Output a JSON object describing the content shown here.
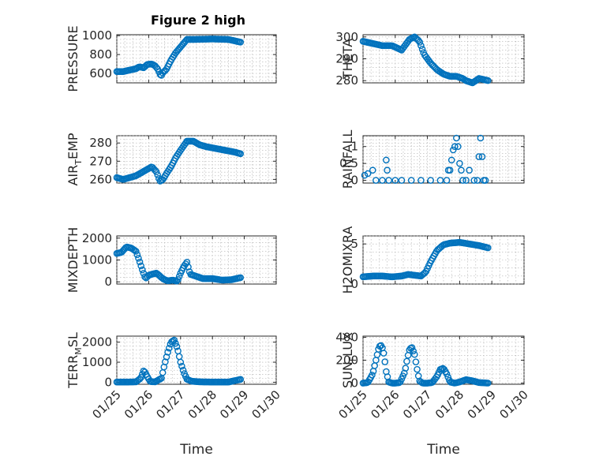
{
  "figure_title": "Figure 2 high",
  "marker_color": "#0072BD",
  "chart_data": [
    {
      "type": "scatter",
      "ylabel": "PRESSURE",
      "ylabel_sub": "",
      "ylabel_suffix": "",
      "xlim": [
        0,
        5
      ],
      "ylim": [
        500,
        1010
      ],
      "yticks": [
        600,
        800,
        1000
      ],
      "xticks": [
        0,
        1,
        2,
        3,
        4,
        5
      ],
      "x": [
        0.0,
        0.2,
        0.4,
        0.6,
        0.7,
        0.85,
        0.95,
        1.1,
        1.2,
        1.3,
        1.35,
        1.4,
        1.45,
        1.55,
        1.7,
        1.85,
        2.0,
        2.2,
        2.4,
        3.0,
        3.5,
        3.9
      ],
      "y": [
        620,
        620,
        635,
        650,
        670,
        660,
        695,
        700,
        680,
        640,
        590,
        580,
        610,
        640,
        740,
        820,
        880,
        960,
        960,
        965,
        960,
        930
      ],
      "dense": true
    },
    {
      "type": "scatter",
      "ylabel": "THETA",
      "ylabel_sub": "",
      "ylabel_suffix": "",
      "xlim": [
        0,
        5
      ],
      "ylim": [
        279,
        301
      ],
      "yticks": [
        280,
        290,
        300
      ],
      "xticks": [
        0,
        1,
        2,
        3,
        4,
        5
      ],
      "x": [
        0.0,
        0.3,
        0.6,
        0.9,
        1.05,
        1.2,
        1.3,
        1.45,
        1.6,
        1.75,
        1.9,
        2.1,
        2.3,
        2.5,
        2.7,
        2.9,
        3.1,
        3.2,
        3.4,
        3.6,
        3.9
      ],
      "y": [
        298,
        297,
        296,
        296,
        295,
        294,
        296,
        299,
        300,
        298,
        292,
        288,
        285,
        283,
        282,
        282,
        281,
        280,
        279,
        281,
        280
      ],
      "dense": true
    },
    {
      "type": "scatter",
      "ylabel": "AIR",
      "ylabel_sub": "T",
      "ylabel_suffix": "EMP",
      "xlim": [
        0,
        5
      ],
      "ylim": [
        258,
        284
      ],
      "yticks": [
        260,
        270,
        280
      ],
      "xticks": [
        0,
        1,
        2,
        3,
        4,
        5
      ],
      "x": [
        0.0,
        0.2,
        0.4,
        0.6,
        0.8,
        1.0,
        1.1,
        1.25,
        1.35,
        1.45,
        1.55,
        1.7,
        1.85,
        2.0,
        2.2,
        2.4,
        2.6,
        2.8,
        3.1,
        3.4,
        3.7,
        3.9
      ],
      "y": [
        261,
        260,
        261,
        262,
        264,
        266,
        267,
        264,
        259,
        260,
        263,
        267,
        272,
        276,
        281,
        281,
        279,
        278,
        277,
        276,
        275,
        274
      ],
      "dense": true
    },
    {
      "type": "scatter",
      "ylabel": "RAINFALL",
      "ylabel_sub": "",
      "ylabel_suffix": "",
      "xlim": [
        0,
        5
      ],
      "ylim": [
        -0.08,
        1.32
      ],
      "yticks": [
        0,
        0.5,
        1
      ],
      "xticks": [
        0,
        1,
        2,
        3,
        4,
        5
      ],
      "x": [
        0.05,
        0.15,
        0.3,
        0.4,
        0.6,
        0.72,
        0.75,
        0.8,
        1.0,
        1.2,
        1.5,
        1.8,
        2.1,
        2.4,
        2.6,
        2.65,
        2.7,
        2.75,
        2.8,
        2.85,
        2.9,
        2.95,
        3.0,
        3.05,
        3.1,
        3.2,
        3.3,
        3.45,
        3.55,
        3.6,
        3.65,
        3.7,
        3.75,
        3.8
      ],
      "y": [
        0.15,
        0.2,
        0.3,
        0,
        0,
        0.6,
        0.3,
        0,
        0,
        0,
        0,
        0,
        0,
        0,
        0,
        0.3,
        0.3,
        0.6,
        0.9,
        1.0,
        1.25,
        1.0,
        0.5,
        0.3,
        0,
        0,
        0.3,
        0,
        0,
        0.7,
        1.25,
        0.7,
        0,
        0
      ],
      "dense": false
    },
    {
      "type": "scatter",
      "ylabel": "MIXDEPTH",
      "ylabel_sub": "",
      "ylabel_suffix": "",
      "xlim": [
        0,
        5
      ],
      "ylim": [
        -100,
        2100
      ],
      "yticks": [
        0,
        1000,
        2000
      ],
      "xticks": [
        0,
        1,
        2,
        3,
        4,
        5
      ],
      "x": [
        0.0,
        0.15,
        0.3,
        0.45,
        0.6,
        0.7,
        0.8,
        0.9,
        1.0,
        1.1,
        1.25,
        1.4,
        1.5,
        1.6,
        1.75,
        1.9,
        2.0,
        2.1,
        2.2,
        2.3,
        2.5,
        2.7,
        3.0,
        3.3,
        3.6,
        3.9
      ],
      "y": [
        1300,
        1350,
        1600,
        1550,
        1400,
        1000,
        550,
        150,
        300,
        350,
        400,
        200,
        100,
        50,
        80,
        30,
        400,
        700,
        900,
        350,
        250,
        150,
        150,
        80,
        100,
        200
      ],
      "dense": true
    },
    {
      "type": "scatter",
      "ylabel": "H2OMIXRA",
      "ylabel_sub": "",
      "ylabel_suffix": "",
      "xlim": [
        0,
        5
      ],
      "ylim": [
        0,
        6
      ],
      "yticks": [
        0,
        5
      ],
      "xticks": [
        0,
        1,
        2,
        3,
        4,
        5
      ],
      "x": [
        0.0,
        0.3,
        0.6,
        0.9,
        1.2,
        1.4,
        1.6,
        1.8,
        1.95,
        2.1,
        2.3,
        2.5,
        2.7,
        3.0,
        3.3,
        3.6,
        3.9
      ],
      "y": [
        0.9,
        1.0,
        1.0,
        0.9,
        1.0,
        1.2,
        1.1,
        1.0,
        1.5,
        2.8,
        4.2,
        4.9,
        5.1,
        5.2,
        5.0,
        4.8,
        4.5
      ],
      "dense": true
    },
    {
      "type": "scatter",
      "ylabel": "TERR",
      "ylabel_sub": "M",
      "ylabel_suffix": "SL",
      "xlim": [
        0,
        5
      ],
      "ylim": [
        -100,
        2300
      ],
      "yticks": [
        0,
        1000,
        2000
      ],
      "xticks": [
        0,
        1,
        2,
        3,
        4,
        5
      ],
      "x": [
        0.0,
        0.3,
        0.6,
        0.75,
        0.85,
        0.95,
        1.05,
        1.2,
        1.4,
        1.5,
        1.6,
        1.7,
        1.8,
        1.9,
        2.0,
        2.1,
        2.2,
        2.35,
        2.6,
        3.0,
        3.5,
        3.9
      ],
      "y": [
        10,
        10,
        20,
        200,
        600,
        300,
        30,
        20,
        200,
        900,
        1500,
        2000,
        2100,
        1700,
        1000,
        500,
        150,
        50,
        20,
        10,
        10,
        150
      ],
      "dense": true
    },
    {
      "type": "scatter",
      "ylabel": "SUN",
      "ylabel_sub": "F",
      "ylabel_suffix": "LUX",
      "xlim": [
        0,
        5
      ],
      "ylim": [
        -10,
        410
      ],
      "yticks": [
        0,
        200,
        400
      ],
      "xticks": [
        0,
        1,
        2,
        3,
        4,
        5
      ],
      "x": [
        0.0,
        0.15,
        0.3,
        0.4,
        0.5,
        0.58,
        0.65,
        0.72,
        0.8,
        0.9,
        1.0,
        1.15,
        1.3,
        1.38,
        1.45,
        1.52,
        1.6,
        1.68,
        1.75,
        1.85,
        2.0,
        2.15,
        2.3,
        2.4,
        2.5,
        2.6,
        2.7,
        2.85,
        3.0,
        3.2,
        3.4,
        3.6,
        3.9
      ],
      "y": [
        0,
        5,
        80,
        200,
        320,
        330,
        250,
        100,
        10,
        0,
        0,
        5,
        100,
        220,
        300,
        310,
        250,
        120,
        20,
        0,
        0,
        5,
        60,
        120,
        130,
        80,
        10,
        0,
        10,
        30,
        20,
        5,
        0
      ],
      "dense": true
    }
  ],
  "xtick_labels": [
    "01/25",
    "01/26",
    "01/27",
    "01/28",
    "01/29",
    "01/30"
  ],
  "xlabel": "Time"
}
